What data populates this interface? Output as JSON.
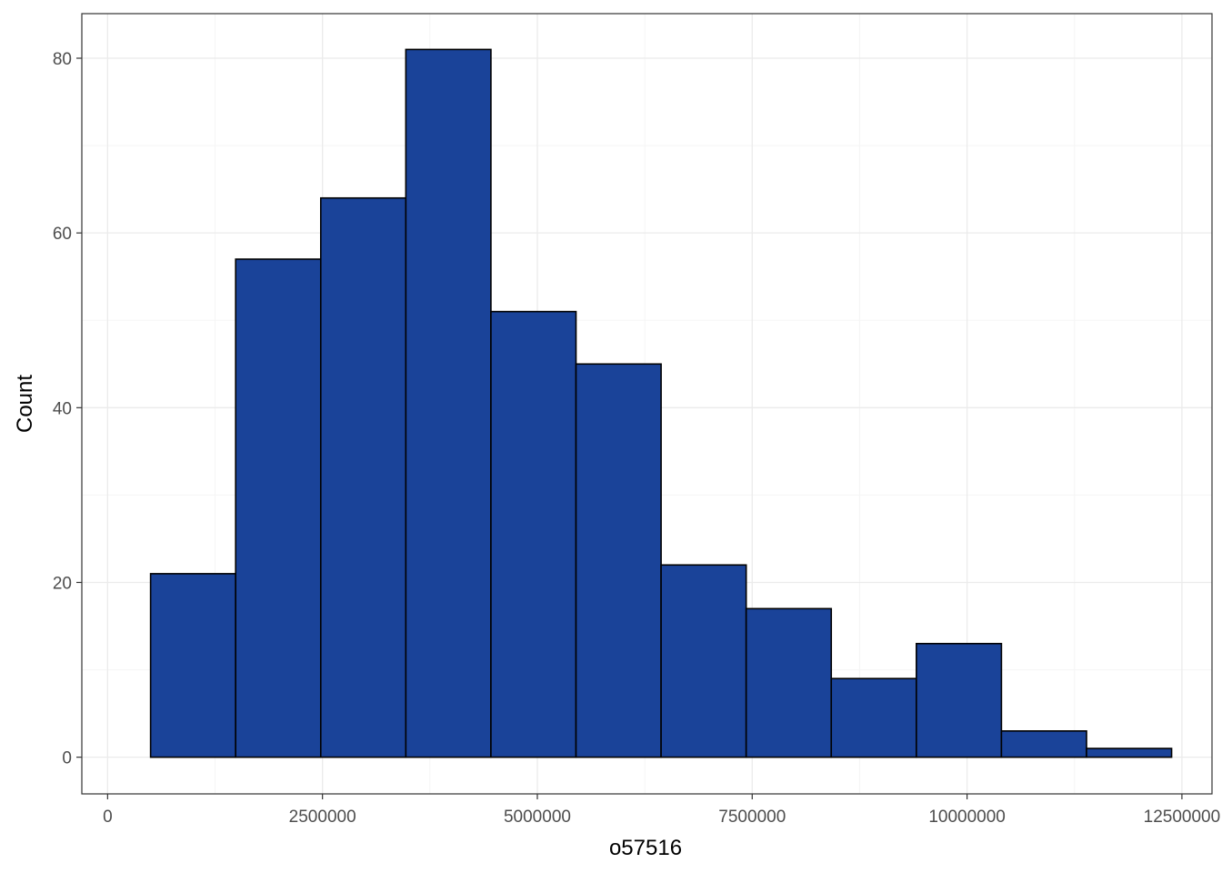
{
  "chart_data": {
    "type": "bar",
    "subtype": "histogram",
    "xlabel": "o57516",
    "ylabel": "Count",
    "bins": [
      {
        "start": 500000,
        "end": 1490000,
        "count": 21
      },
      {
        "start": 1490000,
        "end": 2480000,
        "count": 57
      },
      {
        "start": 2480000,
        "end": 3470000,
        "count": 64
      },
      {
        "start": 3470000,
        "end": 4460000,
        "count": 81
      },
      {
        "start": 4460000,
        "end": 5450000,
        "count": 51
      },
      {
        "start": 5450000,
        "end": 6440000,
        "count": 45
      },
      {
        "start": 6440000,
        "end": 7430000,
        "count": 22
      },
      {
        "start": 7430000,
        "end": 8420000,
        "count": 17
      },
      {
        "start": 8420000,
        "end": 9410000,
        "count": 9
      },
      {
        "start": 9410000,
        "end": 10400000,
        "count": 13
      },
      {
        "start": 10400000,
        "end": 11390000,
        "count": 3
      },
      {
        "start": 11390000,
        "end": 12380000,
        "count": 1
      }
    ],
    "xlim": [
      -300000,
      12850000
    ],
    "ylim": [
      -4.2,
      85.1
    ],
    "x_ticks": [
      0,
      2500000,
      5000000,
      7500000,
      10000000,
      12500000
    ],
    "x_tick_labels": [
      "0",
      "2500000",
      "5000000",
      "7500000",
      "10000000",
      "12500000"
    ],
    "y_ticks": [
      0,
      20,
      40,
      60,
      80
    ],
    "y_tick_labels": [
      "0",
      "20",
      "40",
      "60",
      "80"
    ],
    "grid": true,
    "legend": "none",
    "colors": {
      "bar_fill": "#1a4399",
      "bar_stroke": "#000000",
      "grid_major": "#ebebeb",
      "grid_minor": "#f5f5f5",
      "panel_border": "#333333",
      "tick_text": "#4d4d4d"
    }
  }
}
